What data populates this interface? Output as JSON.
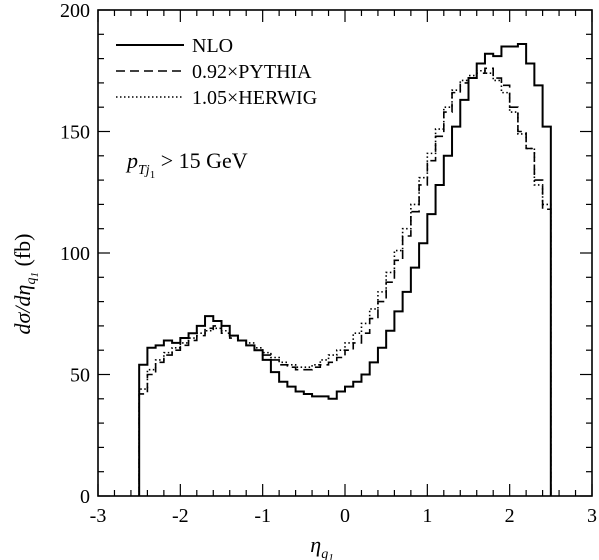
{
  "chart_data": {
    "type": "line",
    "title": "",
    "xlabel": "η_q1",
    "ylabel": "dσ/dη_q1 (fb)",
    "xlim": [
      -3,
      3
    ],
    "ylim": [
      0,
      200
    ],
    "x_ticks": [
      "-3",
      "-2",
      "-1",
      "0",
      "1",
      "2",
      "3"
    ],
    "y_ticks": [
      "0",
      "50",
      "100",
      "150",
      "200"
    ],
    "grid": false,
    "legend_position": "top-left",
    "annotation": "p_{Tj1} > 15 GeV",
    "bin_edges": [
      -2.5,
      -2.4,
      -2.3,
      -2.2,
      -2.1,
      -2.0,
      -1.9,
      -1.8,
      -1.7,
      -1.6,
      -1.5,
      -1.4,
      -1.3,
      -1.2,
      -1.1,
      -1.0,
      -0.9,
      -0.8,
      -0.7,
      -0.6,
      -0.5,
      -0.4,
      -0.3,
      -0.2,
      -0.1,
      0.0,
      0.1,
      0.2,
      0.3,
      0.4,
      0.5,
      0.6,
      0.7,
      0.8,
      0.9,
      1.0,
      1.1,
      1.2,
      1.3,
      1.4,
      1.5,
      1.6,
      1.7,
      1.8,
      1.9,
      2.0,
      2.1,
      2.2,
      2.3,
      2.4,
      2.5
    ],
    "series": [
      {
        "name": "NLO",
        "style": "solid",
        "values": [
          54,
          61,
          62,
          64,
          63,
          65,
          67,
          70,
          74,
          72,
          70,
          66,
          64,
          62,
          60,
          56,
          51,
          47,
          45,
          43,
          42,
          41,
          41,
          40,
          43,
          45,
          47,
          50,
          55,
          61,
          68,
          76,
          84,
          94,
          104,
          116,
          128,
          140,
          152,
          163,
          172,
          178,
          182,
          181,
          185,
          185,
          186,
          178,
          169,
          152
        ]
      },
      {
        "name": "0.92×PYTHIA",
        "style": "dashed",
        "values": [
          42,
          50,
          55,
          58,
          60,
          62,
          64,
          66,
          69,
          70,
          67,
          65,
          64,
          62,
          60,
          58,
          56,
          54,
          53,
          52,
          52,
          53,
          54,
          55,
          57,
          60,
          63,
          67,
          73,
          80,
          88,
          97,
          107,
          117,
          128,
          138,
          148,
          158,
          166,
          170,
          172,
          174,
          176,
          172,
          169,
          160,
          150,
          143,
          130,
          118
        ]
      },
      {
        "name": "1.05×HERWIG",
        "style": "dotted",
        "values": [
          44,
          52,
          56,
          59,
          61,
          63,
          65,
          67,
          68,
          69,
          68,
          66,
          64,
          63,
          61,
          59,
          57,
          55,
          54,
          53,
          53,
          54,
          56,
          58,
          60,
          63,
          67,
          71,
          77,
          84,
          92,
          101,
          110,
          120,
          131,
          141,
          151,
          160,
          167,
          171,
          173,
          175,
          174,
          171,
          166,
          158,
          149,
          143,
          128,
          120
        ]
      }
    ]
  }
}
